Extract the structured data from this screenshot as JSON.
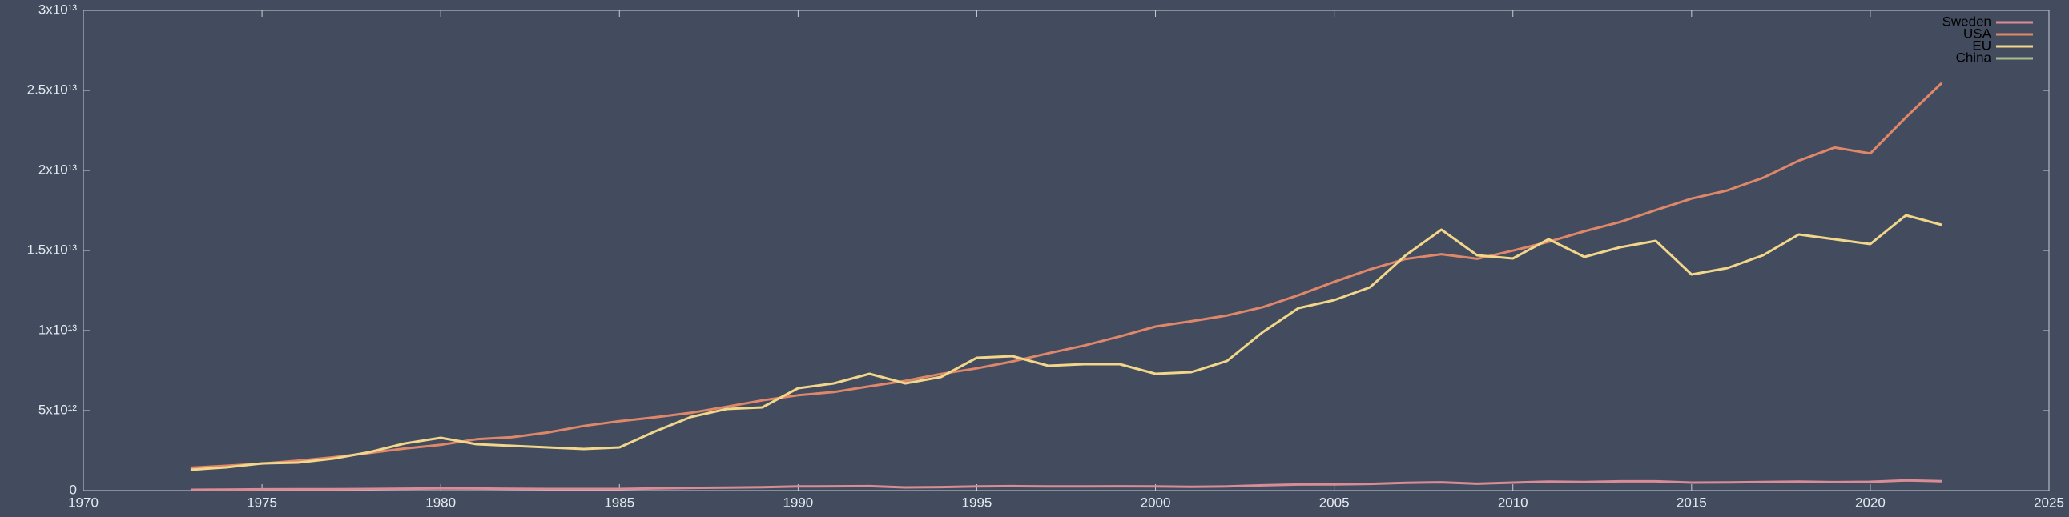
{
  "chart_data": {
    "type": "line",
    "x": [
      1973,
      1974,
      1975,
      1976,
      1977,
      1978,
      1979,
      1980,
      1981,
      1982,
      1983,
      1984,
      1985,
      1986,
      1987,
      1988,
      1989,
      1990,
      1991,
      1992,
      1993,
      1994,
      1995,
      1996,
      1997,
      1998,
      1999,
      2000,
      2001,
      2002,
      2003,
      2004,
      2005,
      2006,
      2007,
      2008,
      2009,
      2010,
      2011,
      2012,
      2013,
      2014,
      2015,
      2016,
      2017,
      2018,
      2019,
      2020,
      2021,
      2022
    ],
    "series": [
      {
        "name": "Sweden",
        "color": "#d98c96",
        "values": [
          50000000000.0,
          60000000000.0,
          80000000000.0,
          90000000000.0,
          90000000000.0,
          100000000000.0,
          120000000000.0,
          140000000000.0,
          130000000000.0,
          110000000000.0,
          100000000000.0,
          100000000000.0,
          100000000000.0,
          140000000000.0,
          170000000000.0,
          190000000000.0,
          210000000000.0,
          260000000000.0,
          270000000000.0,
          280000000000.0,
          200000000000.0,
          220000000000.0,
          260000000000.0,
          280000000000.0,
          260000000000.0,
          260000000000.0,
          270000000000.0,
          260000000000.0,
          240000000000.0,
          260000000000.0,
          330000000000.0,
          380000000000.0,
          390000000000.0,
          420000000000.0,
          490000000000.0,
          520000000000.0,
          430000000000.0,
          500000000000.0,
          560000000000.0,
          540000000000.0,
          580000000000.0,
          580000000000.0,
          500000000000.0,
          510000000000.0,
          540000000000.0,
          560000000000.0,
          530000000000.0,
          550000000000.0,
          640000000000.0,
          590000000000.0
        ]
      },
      {
        "name": "USA",
        "color": "#e0876a",
        "values": [
          1430000000000.0,
          1550000000000.0,
          1690000000000.0,
          1870000000000.0,
          2080000000000.0,
          2350000000000.0,
          2630000000000.0,
          2860000000000.0,
          3210000000000.0,
          3340000000000.0,
          3630000000000.0,
          4040000000000.0,
          4340000000000.0,
          4580000000000.0,
          4860000000000.0,
          5240000000000.0,
          5640000000000.0,
          5960000000000.0,
          6160000000000.0,
          6520000000000.0,
          6860000000000.0,
          7290000000000.0,
          7640000000000.0,
          8070000000000.0,
          8580000000000.0,
          9060000000000.0,
          9630000000000.0,
          10250000000000.0,
          10580000000000.0,
          10940000000000.0,
          11460000000000.0,
          12210000000000.0,
          13040000000000.0,
          13820000000000.0,
          14470000000000.0,
          14770000000000.0,
          14480000000000.0,
          14990000000000.0,
          15540000000000.0,
          16200000000000.0,
          16780000000000.0,
          17520000000000.0,
          18240000000000.0,
          18750000000000.0,
          19540000000000.0,
          20610000000000.0,
          21430000000000.0,
          21060000000000.0,
          23320000000000.0,
          25460000000000.0
        ]
      },
      {
        "name": "EU",
        "color": "#f2d68a",
        "values": [
          1300000000000.0,
          1450000000000.0,
          1700000000000.0,
          1750000000000.0,
          2000000000000.0,
          2400000000000.0,
          2950000000000.0,
          3300000000000.0,
          2900000000000.0,
          2800000000000.0,
          2700000000000.0,
          2600000000000.0,
          2700000000000.0,
          3700000000000.0,
          4600000000000.0,
          5100000000000.0,
          5200000000000.0,
          6400000000000.0,
          6700000000000.0,
          7300000000000.0,
          6700000000000.0,
          7100000000000.0,
          8300000000000.0,
          8400000000000.0,
          7800000000000.0,
          7900000000000.0,
          7900000000000.0,
          7300000000000.0,
          7400000000000.0,
          8100000000000.0,
          9900000000000.0,
          11400000000000.0,
          11900000000000.0,
          12700000000000.0,
          14700000000000.0,
          16300000000000.0,
          14700000000000.0,
          14500000000000.0,
          15700000000000.0,
          14600000000000.0,
          15200000000000.0,
          15600000000000.0,
          13500000000000.0,
          13900000000000.0,
          14700000000000.0,
          16000000000000.0,
          15700000000000.0,
          15400000000000.0,
          17200000000000.0,
          16600000000000.0
        ]
      },
      {
        "name": "China",
        "color": "#a3be8c",
        "values": [
          null,
          null,
          null,
          null,
          null,
          null,
          null,
          null,
          null,
          null,
          null,
          null,
          null,
          null,
          null,
          null,
          null,
          null,
          null,
          null,
          null,
          null,
          null,
          null,
          null,
          null,
          null,
          null,
          null,
          null,
          null,
          null,
          null,
          null,
          null,
          null,
          null,
          null,
          null,
          null,
          null,
          null,
          null,
          null,
          null,
          null,
          null,
          null,
          null,
          null
        ]
      }
    ],
    "xlim": [
      1970,
      2025
    ],
    "xticks": [
      1970,
      1975,
      1980,
      1985,
      1990,
      1995,
      2000,
      2005,
      2010,
      2015,
      2020,
      2025
    ],
    "ylim": [
      0,
      30000000000000.0
    ],
    "yticks": [
      0,
      {
        "value": 5000000000000.0,
        "label": "5x10¹²"
      },
      {
        "value": 10000000000000.0,
        "label": "1x10¹³"
      },
      {
        "value": 15000000000000.0,
        "label": "1.5x10¹³"
      },
      {
        "value": 20000000000000.0,
        "label": "2x10¹³"
      },
      {
        "value": 25000000000000.0,
        "label": "2.5x10¹³"
      },
      {
        "value": 30000000000000.0,
        "label": "3x10¹³"
      }
    ],
    "grid": false,
    "legend": "top-right"
  }
}
